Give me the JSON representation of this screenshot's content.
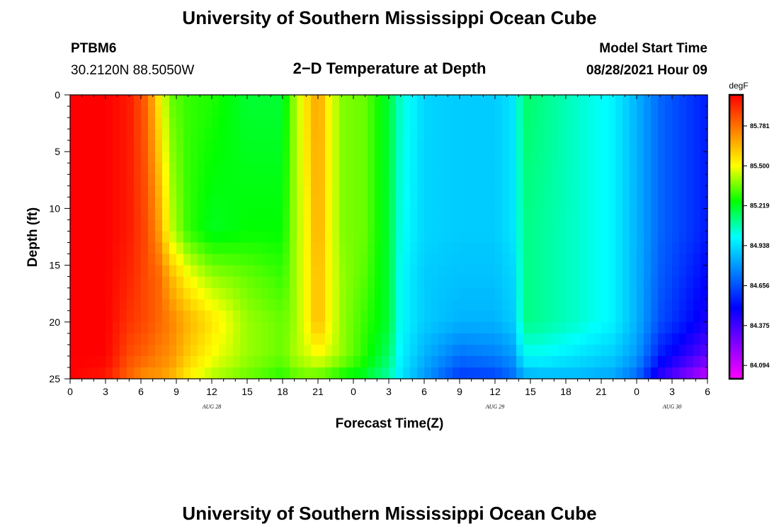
{
  "header": {
    "title": "University of Southern Mississippi Ocean Cube",
    "station": "PTBM6",
    "coords": "30.2120N  88.5050W",
    "subtitle": "2−D Temperature at Depth",
    "model_label": "Model Start Time",
    "model_time": "08/28/2021 Hour 09"
  },
  "footer": {
    "title": "University of Southern Mississippi Ocean Cube"
  },
  "chart_data": {
    "type": "heatmap",
    "title": "2−D Temperature at Depth",
    "xlabel": "Forecast Time(Z)",
    "ylabel": "Depth (ft)",
    "x_tick_labels": [
      "0",
      "3",
      "6",
      "9",
      "12",
      "15",
      "18",
      "21",
      "0",
      "3",
      "6",
      "9",
      "12",
      "15",
      "18",
      "21",
      "0",
      "3",
      "6"
    ],
    "x_hours": [
      0,
      3,
      6,
      9,
      12,
      15,
      18,
      21,
      24,
      27,
      30,
      33,
      36,
      39,
      42,
      45,
      48,
      51,
      54
    ],
    "x_range_hours": [
      0,
      54
    ],
    "date_labels": [
      {
        "text": "AUG  28",
        "hour": 12
      },
      {
        "text": "AUG  29",
        "hour": 36
      },
      {
        "text": "AUG  30",
        "hour": 51
      }
    ],
    "y_ticks": [
      0,
      5,
      10,
      15,
      20,
      25
    ],
    "y_tick_labels": [
      "0",
      "5",
      "10",
      "15",
      "20",
      "25"
    ],
    "y_range": [
      0,
      25
    ],
    "y_inverted": true,
    "colorbar": {
      "unit": "degF",
      "labels": [
        "85.781",
        "85.500",
        "85.219",
        "84.938",
        "84.656",
        "84.375",
        "84.094"
      ],
      "values": [
        85.781,
        85.5,
        85.219,
        84.938,
        84.656,
        84.375,
        84.094
      ],
      "range": [
        84.0,
        86.0
      ],
      "colors_top_to_bottom": [
        "#ff0000",
        "#ff8000",
        "#ffff00",
        "#00ff00",
        "#00ffff",
        "#0080ff",
        "#0000ff",
        "#8000ff",
        "#ff00ff"
      ]
    },
    "temperature_profiles_degF": {
      "depths_ft": [
        0,
        12,
        16,
        20,
        23,
        25
      ],
      "columns": [
        {
          "hour": 0,
          "temps": [
            86.0,
            86.0,
            86.0,
            86.0,
            86.0,
            86.0
          ]
        },
        {
          "hour": 3,
          "temps": [
            86.0,
            86.0,
            86.0,
            86.0,
            86.0,
            85.95
          ]
        },
        {
          "hour": 5,
          "temps": [
            85.95,
            85.95,
            85.93,
            85.9,
            85.85,
            85.8
          ]
        },
        {
          "hour": 6.5,
          "temps": [
            85.8,
            85.85,
            85.85,
            85.85,
            85.8,
            85.7
          ]
        },
        {
          "hour": 7.5,
          "temps": [
            85.55,
            85.7,
            85.8,
            85.8,
            85.75,
            85.7
          ]
        },
        {
          "hour": 8.5,
          "temps": [
            85.35,
            85.45,
            85.65,
            85.75,
            85.72,
            85.65
          ]
        },
        {
          "hour": 10,
          "temps": [
            85.3,
            85.3,
            85.5,
            85.65,
            85.6,
            85.52
          ]
        },
        {
          "hour": 12,
          "temps": [
            85.28,
            85.22,
            85.4,
            85.55,
            85.5,
            85.42
          ]
        },
        {
          "hour": 15,
          "temps": [
            85.2,
            85.25,
            85.35,
            85.4,
            85.4,
            85.35
          ]
        },
        {
          "hour": 18,
          "temps": [
            85.2,
            85.25,
            85.3,
            85.35,
            85.35,
            85.28
          ]
        },
        {
          "hour": 19,
          "temps": [
            85.4,
            85.4,
            85.4,
            85.4,
            85.42,
            85.33
          ]
        },
        {
          "hour": 20,
          "temps": [
            85.55,
            85.5,
            85.5,
            85.5,
            85.45,
            85.35
          ]
        },
        {
          "hour": 21,
          "temps": [
            85.7,
            85.68,
            85.65,
            85.65,
            85.5,
            85.33
          ]
        },
        {
          "hour": 22,
          "temps": [
            85.5,
            85.5,
            85.5,
            85.5,
            85.45,
            85.3
          ]
        },
        {
          "hour": 23,
          "temps": [
            85.38,
            85.38,
            85.4,
            85.4,
            85.4,
            85.25
          ]
        },
        {
          "hour": 25,
          "temps": [
            85.35,
            85.35,
            85.33,
            85.3,
            85.28,
            85.2
          ]
        },
        {
          "hour": 27,
          "temps": [
            85.2,
            85.2,
            85.2,
            85.2,
            85.15,
            85.08
          ]
        },
        {
          "hour": 28,
          "temps": [
            85.05,
            85.02,
            85.0,
            85.0,
            84.98,
            84.95
          ]
        },
        {
          "hour": 30,
          "temps": [
            84.92,
            84.92,
            84.9,
            84.9,
            84.85,
            84.8
          ]
        },
        {
          "hour": 33,
          "temps": [
            84.9,
            84.9,
            84.88,
            84.85,
            84.72,
            84.6
          ]
        },
        {
          "hour": 36,
          "temps": [
            84.9,
            84.9,
            84.88,
            84.85,
            84.75,
            84.62
          ]
        },
        {
          "hour": 37.5,
          "temps": [
            84.95,
            84.95,
            84.92,
            84.9,
            84.8,
            84.7
          ]
        },
        {
          "hour": 38.5,
          "temps": [
            85.15,
            85.12,
            85.12,
            85.12,
            85.0,
            84.82
          ]
        },
        {
          "hour": 40,
          "temps": [
            85.12,
            85.1,
            85.1,
            85.1,
            85.0,
            84.85
          ]
        },
        {
          "hour": 43,
          "temps": [
            85.05,
            85.05,
            85.05,
            85.05,
            84.95,
            84.85
          ]
        },
        {
          "hour": 46,
          "temps": [
            84.98,
            84.98,
            84.98,
            84.98,
            84.9,
            84.82
          ]
        },
        {
          "hour": 48,
          "temps": [
            84.85,
            84.85,
            84.85,
            84.85,
            84.8,
            84.7
          ]
        },
        {
          "hour": 50,
          "temps": [
            84.7,
            84.7,
            84.68,
            84.65,
            84.55,
            84.4
          ]
        },
        {
          "hour": 54,
          "temps": [
            84.55,
            84.55,
            84.5,
            84.45,
            84.3,
            84.1
          ]
        }
      ]
    }
  }
}
